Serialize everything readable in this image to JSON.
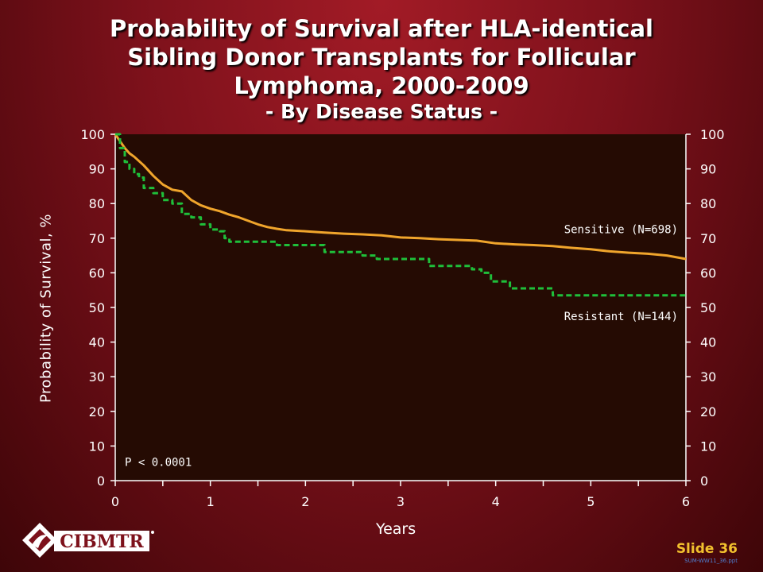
{
  "title": {
    "line1": "Probability of Survival after HLA-identical",
    "line2": "Sibling Donor Transplants for Follicular",
    "line3": "Lymphoma, 2000-2009",
    "subtitle": "- By Disease Status -"
  },
  "chart_data": {
    "type": "line",
    "xlabel": "Years",
    "ylabel": "Probability of Survival, %",
    "xlim": [
      0,
      6
    ],
    "ylim": [
      0,
      100
    ],
    "x_ticks": [
      0,
      1,
      2,
      3,
      4,
      5,
      6
    ],
    "y_ticks": [
      0,
      10,
      20,
      30,
      40,
      50,
      60,
      70,
      80,
      90,
      100
    ],
    "annotation": "P < 0.0001",
    "series": [
      {
        "name": "Sensitive (N=698)",
        "color": "#f0a52c",
        "style": "solid",
        "x": [
          0,
          0.05,
          0.1,
          0.15,
          0.2,
          0.3,
          0.4,
          0.5,
          0.6,
          0.7,
          0.8,
          0.9,
          1.0,
          1.1,
          1.2,
          1.3,
          1.4,
          1.5,
          1.6,
          1.7,
          1.8,
          2.0,
          2.2,
          2.4,
          2.6,
          2.8,
          3.0,
          3.2,
          3.4,
          3.6,
          3.8,
          4.0,
          4.2,
          4.4,
          4.6,
          4.8,
          5.0,
          5.2,
          5.4,
          5.6,
          5.8,
          6.0
        ],
        "y": [
          100,
          98,
          96,
          94.5,
          93.5,
          91,
          88,
          85.5,
          84,
          83.5,
          81,
          79.5,
          78.5,
          77.8,
          76.8,
          76,
          75,
          74,
          73.2,
          72.7,
          72.3,
          72,
          71.6,
          71.3,
          71.1,
          70.8,
          70.2,
          70,
          69.7,
          69.5,
          69.3,
          68.5,
          68.2,
          68,
          67.7,
          67.2,
          66.8,
          66.2,
          65.8,
          65.5,
          65,
          64
        ]
      },
      {
        "name": "Resistant (N=144)",
        "color": "#1fbf3a",
        "style": "dashed",
        "x": [
          0,
          0.05,
          0.1,
          0.15,
          0.2,
          0.25,
          0.3,
          0.4,
          0.5,
          0.6,
          0.7,
          0.8,
          0.9,
          1.0,
          1.1,
          1.15,
          1.2,
          1.4,
          1.6,
          1.7,
          2.0,
          2.2,
          2.6,
          2.75,
          3.0,
          3.3,
          3.6,
          3.75,
          3.85,
          3.95,
          4.0,
          4.15,
          4.3,
          4.5,
          4.6,
          5.0,
          5.5,
          6.0
        ],
        "y": [
          100,
          96,
          92,
          90,
          88.5,
          87.5,
          84.5,
          83,
          81,
          80,
          77,
          76,
          74,
          72.5,
          72,
          70,
          69,
          69,
          69,
          68,
          68,
          66,
          65,
          64,
          64,
          62,
          62,
          61,
          60,
          57.5,
          57.5,
          55.5,
          55.5,
          55.5,
          53.5,
          53.5,
          53.5,
          53.5
        ]
      }
    ]
  },
  "logo_text": "CIBMTR",
  "slide_label": "Slide 36",
  "file_label": "SUM-WW11_36.ppt"
}
